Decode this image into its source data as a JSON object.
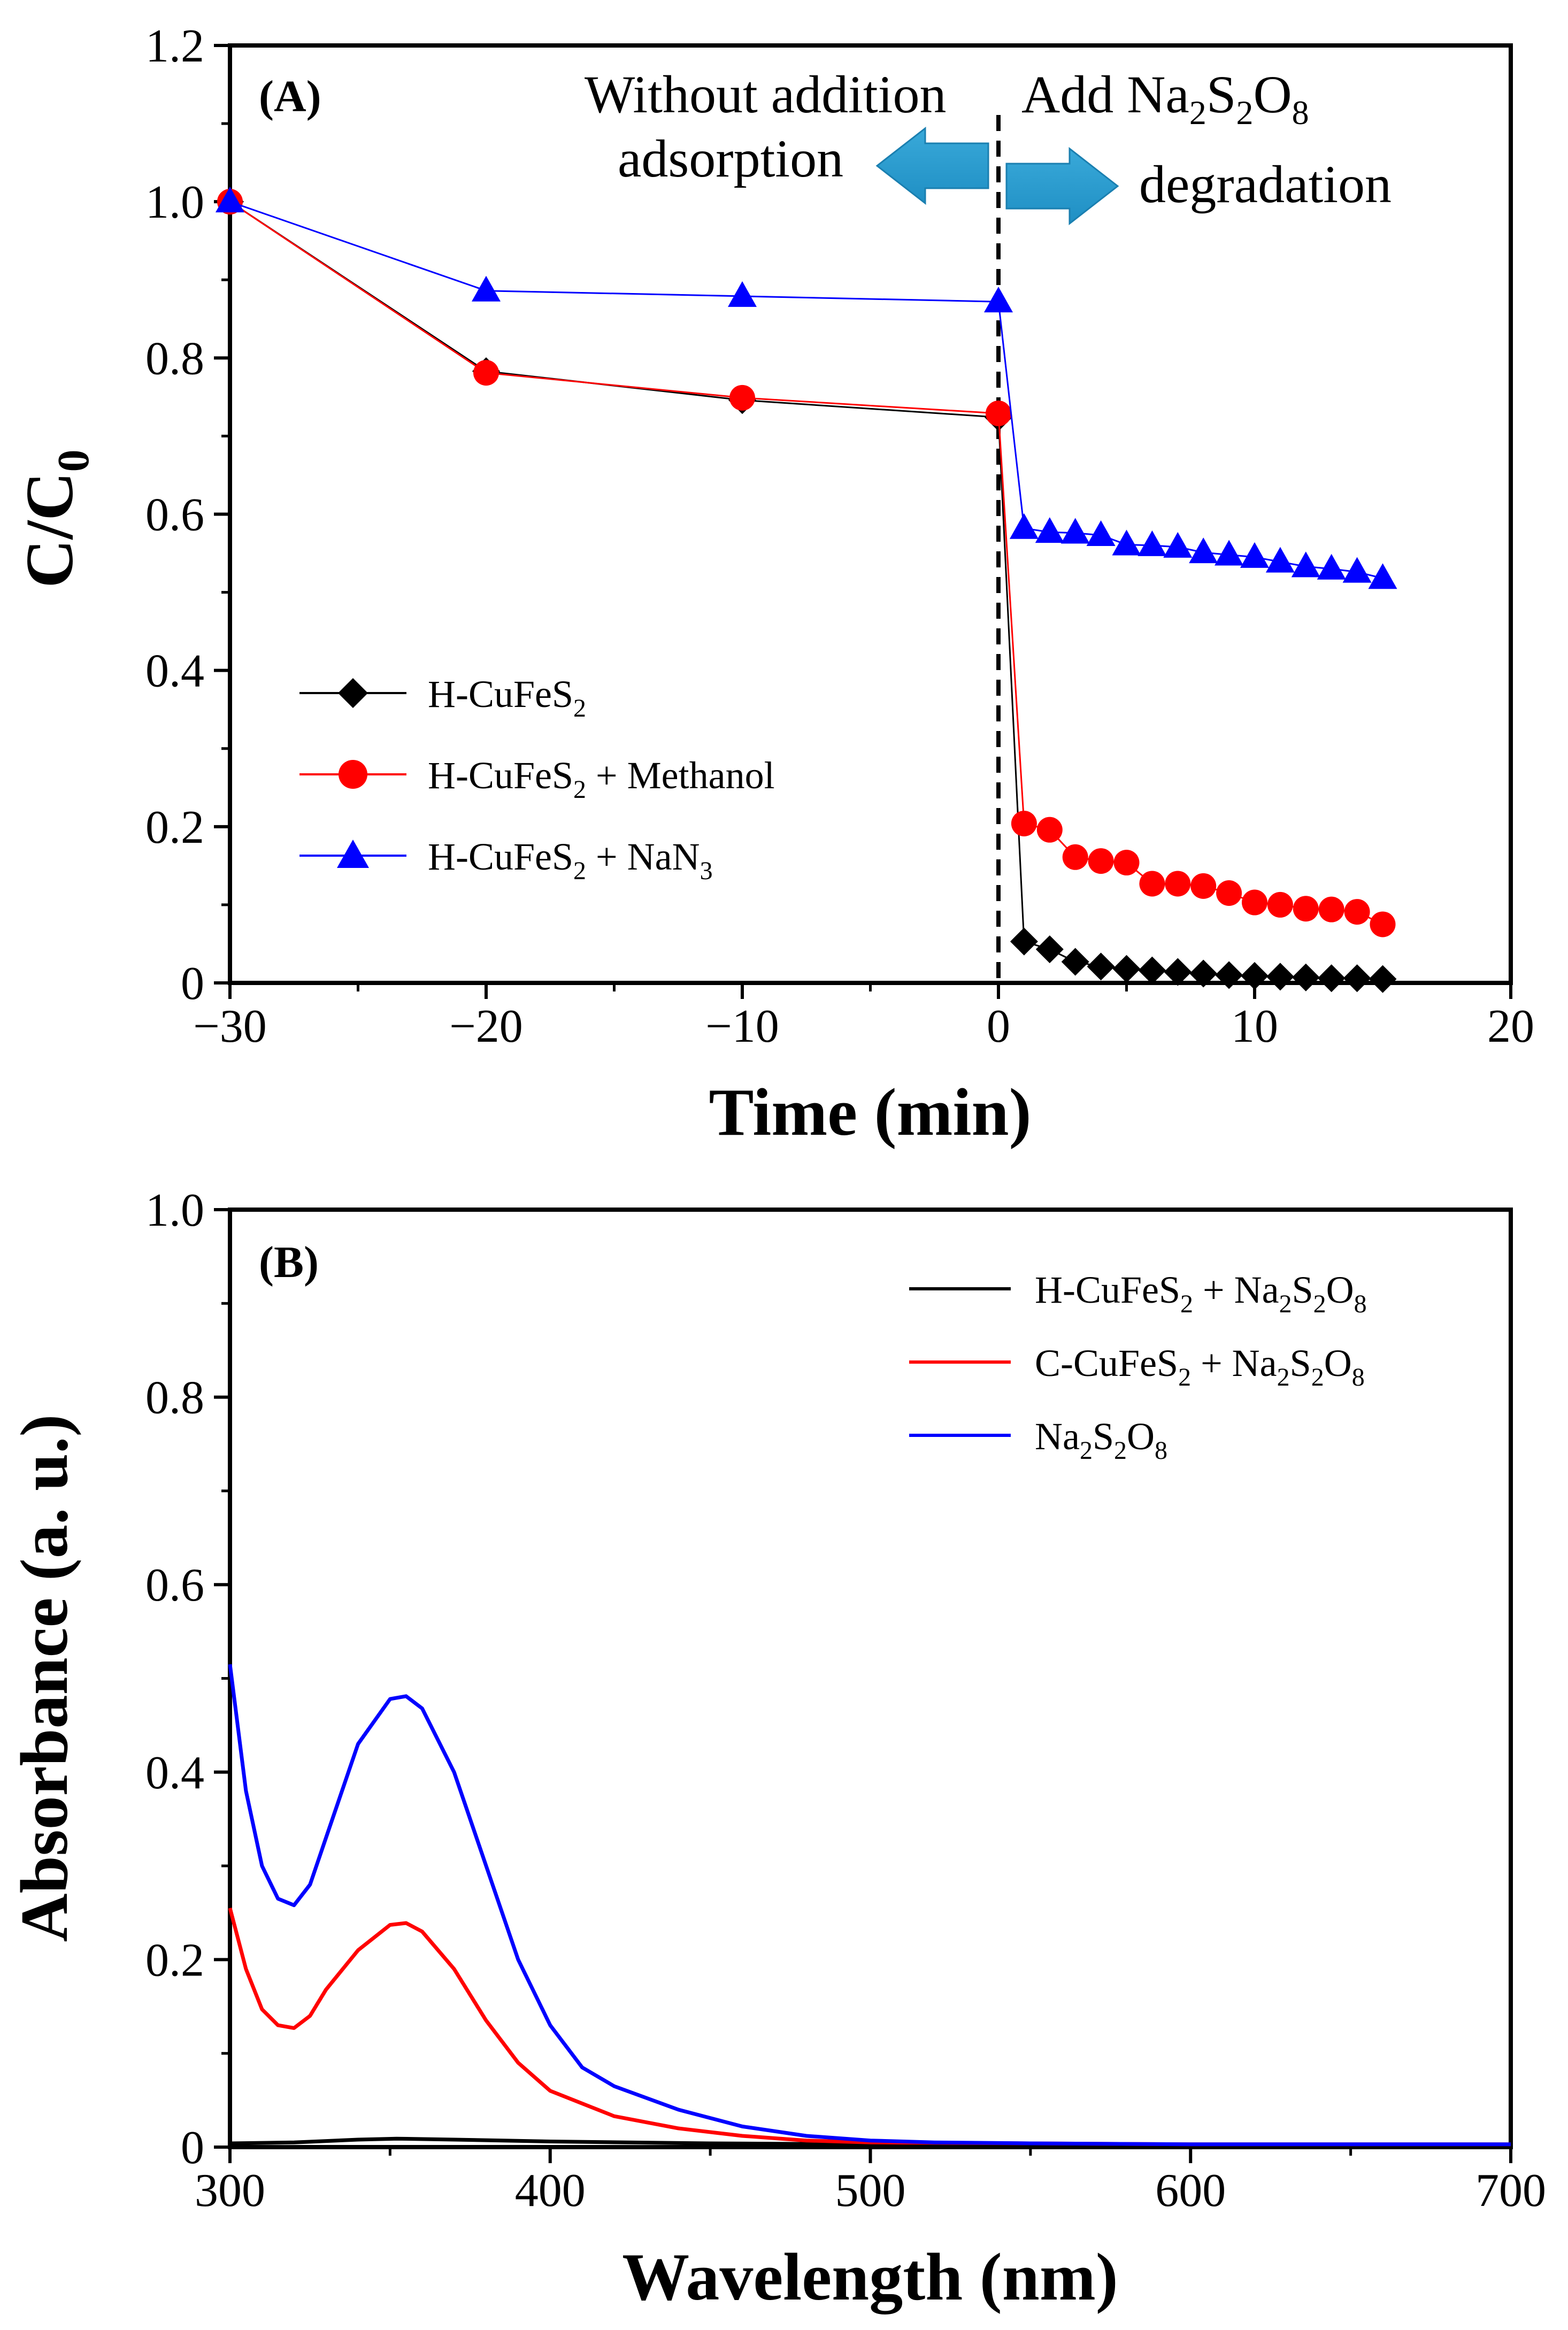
{
  "chart_data": [
    {
      "panel": "(A)",
      "type": "line",
      "xlabel": "Time (min)",
      "ylabel": "C/C",
      "ylabel_sub": "0",
      "xlim": [
        -30,
        20
      ],
      "ylim": [
        0,
        1.2
      ],
      "xticks": [
        -30,
        -20,
        -10,
        0,
        10,
        20
      ],
      "xtick_labels": [
        "−30",
        "−20",
        "−10",
        "0",
        "10",
        "20"
      ],
      "yticks": [
        0,
        0.2,
        0.4,
        0.6,
        0.8,
        1.0,
        1.2
      ],
      "ytick_labels": [
        "0",
        "0.2",
        "0.4",
        "0.6",
        "0.8",
        "1.0",
        "1.2"
      ],
      "vline_x": 0,
      "annotations": {
        "left_line1": "Without addition",
        "left_line2": "adsorption",
        "right_line1_prefix": "Add Na",
        "right_sub1": "2",
        "right_mid": "S",
        "right_sub2": "2",
        "right_mid2": "O",
        "right_sub3": "8",
        "right_line2": "degradation"
      },
      "series": [
        {
          "name": "H-CuFeS2",
          "legend": {
            "pre": "H-CuFeS",
            "sub": "2",
            "post": ""
          },
          "color": "#000000",
          "marker": "diamond",
          "x": [
            -30,
            -20,
            -10,
            0,
            1,
            2,
            3,
            4,
            5,
            6,
            7,
            8,
            9,
            10,
            11,
            12,
            13,
            14,
            15
          ],
          "y": [
            1.0,
            0.783,
            0.746,
            0.724,
            0.053,
            0.043,
            0.027,
            0.021,
            0.018,
            0.016,
            0.014,
            0.012,
            0.01,
            0.009,
            0.008,
            0.007,
            0.006,
            0.006,
            0.005
          ]
        },
        {
          "name": "H-CuFeS2 + Methanol",
          "legend": {
            "pre": "H-CuFeS",
            "sub": "2",
            "post": " + Methanol"
          },
          "color": "#ff0000",
          "marker": "circle",
          "x": [
            -30,
            -20,
            -10,
            0,
            1,
            2,
            3,
            4,
            5,
            6,
            7,
            8,
            9,
            10,
            11,
            12,
            13,
            14,
            15
          ],
          "y": [
            1.0,
            0.781,
            0.749,
            0.729,
            0.204,
            0.196,
            0.161,
            0.156,
            0.154,
            0.127,
            0.127,
            0.124,
            0.115,
            0.103,
            0.1,
            0.095,
            0.094,
            0.091,
            0.075
          ]
        },
        {
          "name": "H-CuFeS2 + NaN3",
          "legend": {
            "pre": "H-CuFeS",
            "sub": "2",
            "post": " + NaN",
            "sub2": "3"
          },
          "color": "#0000ff",
          "marker": "triangle",
          "x": [
            -30,
            -20,
            -10,
            0,
            1,
            2,
            3,
            4,
            5,
            6,
            7,
            8,
            9,
            10,
            11,
            12,
            13,
            14,
            15
          ],
          "y": [
            1.0,
            0.886,
            0.879,
            0.872,
            0.582,
            0.577,
            0.576,
            0.573,
            0.561,
            0.56,
            0.558,
            0.551,
            0.548,
            0.545,
            0.539,
            0.533,
            0.53,
            0.526,
            0.518
          ]
        }
      ]
    },
    {
      "panel": "(B)",
      "type": "line",
      "xlabel": "Wavelength (nm)",
      "ylabel": "Absorbance (a. u.)",
      "xlim": [
        300,
        700
      ],
      "ylim": [
        0,
        1.0
      ],
      "xticks": [
        300,
        400,
        500,
        600,
        700
      ],
      "xtick_labels": [
        "300",
        "400",
        "500",
        "600",
        "700"
      ],
      "yticks": [
        0,
        0.2,
        0.4,
        0.6,
        0.8,
        1.0
      ],
      "ytick_labels": [
        "0",
        "0.2",
        "0.4",
        "0.6",
        "0.8",
        "1.0"
      ],
      "series": [
        {
          "name": "H-CuFeS2 + Na2S2O8",
          "legend": {
            "pre": "H-CuFeS",
            "sub": "2",
            "post": " + Na",
            "sub2": "2",
            "post2": "S",
            "sub3": "2",
            "post3": "O",
            "sub4": "8"
          },
          "color": "#000000",
          "x": [
            300,
            320,
            340,
            352,
            370,
            400,
            450,
            500,
            600,
            700
          ],
          "y": [
            0.004,
            0.005,
            0.008,
            0.009,
            0.008,
            0.006,
            0.004,
            0.003,
            0.002,
            0.002
          ]
        },
        {
          "name": "C-CuFeS2 + Na2S2O8",
          "legend": {
            "pre": "C-CuFeS",
            "sub": "2",
            "post": " + Na",
            "sub2": "2",
            "post2": "S",
            "sub3": "2",
            "post3": "O",
            "sub4": "8"
          },
          "color": "#ff0000",
          "x": [
            300,
            305,
            310,
            315,
            320,
            325,
            330,
            340,
            350,
            355,
            360,
            370,
            380,
            390,
            400,
            420,
            440,
            460,
            480,
            500,
            550,
            600,
            700
          ],
          "y": [
            0.255,
            0.19,
            0.147,
            0.13,
            0.127,
            0.14,
            0.168,
            0.21,
            0.237,
            0.239,
            0.23,
            0.19,
            0.135,
            0.09,
            0.06,
            0.033,
            0.02,
            0.012,
            0.007,
            0.005,
            0.004,
            0.003,
            0.003
          ]
        },
        {
          "name": "Na2S2O8",
          "legend": {
            "pre": "Na",
            "sub": "2",
            "post": "S",
            "sub2": "2",
            "post2": "O",
            "sub3": "8"
          },
          "color": "#0000ff",
          "x": [
            300,
            305,
            310,
            315,
            320,
            325,
            330,
            340,
            350,
            355,
            360,
            370,
            380,
            390,
            400,
            410,
            420,
            440,
            460,
            480,
            500,
            520,
            550,
            600,
            700
          ],
          "y": [
            0.515,
            0.38,
            0.3,
            0.265,
            0.258,
            0.28,
            0.33,
            0.43,
            0.478,
            0.481,
            0.468,
            0.4,
            0.3,
            0.2,
            0.13,
            0.085,
            0.065,
            0.04,
            0.022,
            0.012,
            0.007,
            0.005,
            0.004,
            0.003,
            0.003
          ]
        }
      ]
    }
  ]
}
